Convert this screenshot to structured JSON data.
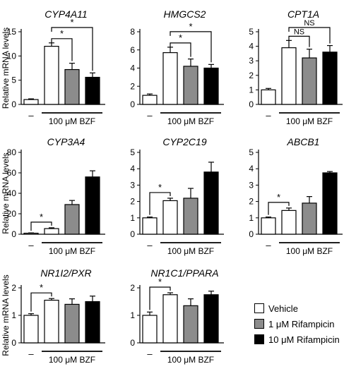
{
  "colors": {
    "vehicle": "#ffffff",
    "rif1": "#8c8c8c",
    "rif10": "#000000",
    "axis": "#000000"
  },
  "legend": [
    {
      "label": "Vehicle",
      "color": "#ffffff"
    },
    {
      "label": "1 μM Rifampicin",
      "color": "#8c8c8c"
    },
    {
      "label": "10 μM Rifampicin",
      "color": "#000000"
    }
  ],
  "chart_data": [
    {
      "type": "bar",
      "title": "CYP4A11",
      "ylabel": "Relative mRNA levels",
      "ylim": [
        0,
        15
      ],
      "yticks": [
        0,
        5,
        10,
        15
      ],
      "first_label": "–",
      "group_label": "100 μM BZF",
      "series": [
        {
          "name": "Vehicle"
        },
        {
          "name": "1 μM Rifampicin"
        },
        {
          "name": "10 μM Rifampicin"
        }
      ],
      "values": [
        1.0,
        12.0,
        7.2,
        5.6
      ],
      "errors": [
        0.15,
        0.7,
        1.3,
        0.9
      ],
      "annotations": [
        {
          "from": 1,
          "to": 2,
          "label": "*"
        },
        {
          "from": 1,
          "to": 3,
          "label": "*"
        }
      ]
    },
    {
      "type": "bar",
      "title": "HMGCS2",
      "ylabel": "",
      "ylim": [
        0,
        8
      ],
      "yticks": [
        0,
        2,
        4,
        6,
        8
      ],
      "first_label": "–",
      "group_label": "100 μM BZF",
      "values": [
        1.0,
        5.7,
        4.2,
        4.0
      ],
      "errors": [
        0.15,
        0.6,
        0.8,
        0.4
      ],
      "annotations": [
        {
          "from": 1,
          "to": 2,
          "label": "*"
        },
        {
          "from": 1,
          "to": 3,
          "label": "*"
        }
      ]
    },
    {
      "type": "bar",
      "title": "CPT1A",
      "ylabel": "",
      "ylim": [
        0,
        5
      ],
      "yticks": [
        0,
        1,
        2,
        3,
        4,
        5
      ],
      "first_label": "–",
      "group_label": "100 μM BZF",
      "values": [
        1.0,
        3.9,
        3.2,
        3.6
      ],
      "errors": [
        0.1,
        0.5,
        0.6,
        0.45
      ],
      "annotations": [
        {
          "from": 1,
          "to": 2,
          "label": "NS"
        },
        {
          "from": 1,
          "to": 3,
          "label": "NS"
        }
      ]
    },
    {
      "type": "bar",
      "title": "CYP3A4",
      "ylabel": "Relative mRNA levels",
      "ylim": [
        0,
        80
      ],
      "yticks": [
        0,
        20,
        40,
        60,
        80
      ],
      "first_label": "–",
      "group_label": "100 μM BZF",
      "values": [
        1.0,
        5.5,
        29,
        56
      ],
      "errors": [
        0.3,
        0.8,
        4,
        6
      ],
      "annotations": [
        {
          "from": 0,
          "to": 1,
          "label": "*"
        }
      ]
    },
    {
      "type": "bar",
      "title": "CYP2C19",
      "ylabel": "",
      "ylim": [
        0,
        5
      ],
      "yticks": [
        0,
        1,
        2,
        3,
        4,
        5
      ],
      "first_label": "–",
      "group_label": "100 μM BZF",
      "values": [
        1.0,
        2.05,
        2.2,
        3.8
      ],
      "errors": [
        0.05,
        0.15,
        0.6,
        0.6
      ],
      "annotations": [
        {
          "from": 0,
          "to": 1,
          "label": "*"
        }
      ]
    },
    {
      "type": "bar",
      "title": "ABCB1",
      "ylabel": "",
      "ylim": [
        0,
        5
      ],
      "yticks": [
        0,
        1,
        2,
        3,
        4,
        5
      ],
      "first_label": "–",
      "group_label": "100 μM BZF",
      "values": [
        1.0,
        1.45,
        1.9,
        3.75
      ],
      "errors": [
        0.05,
        0.15,
        0.4,
        0.08
      ],
      "annotations": [
        {
          "from": 0,
          "to": 1,
          "label": "*"
        }
      ]
    },
    {
      "type": "bar",
      "title": "NR1I2/PXR",
      "ylabel": "Relative mRNA levels",
      "ylim": [
        0,
        2
      ],
      "yticks": [
        0,
        1,
        2
      ],
      "first_label": "–",
      "group_label": "100 μM BZF",
      "values": [
        1.0,
        1.55,
        1.4,
        1.5
      ],
      "errors": [
        0.06,
        0.06,
        0.2,
        0.2
      ],
      "annotations": [
        {
          "from": 0,
          "to": 1,
          "label": "*"
        }
      ]
    },
    {
      "type": "bar",
      "title": "NR1C1/PPARA",
      "ylabel": "",
      "ylim": [
        0,
        2
      ],
      "yticks": [
        0,
        1,
        2
      ],
      "first_label": "–",
      "group_label": "100 μM BZF",
      "values": [
        1.0,
        1.75,
        1.35,
        1.75
      ],
      "errors": [
        0.12,
        0.07,
        0.25,
        0.13
      ],
      "annotations": [
        {
          "from": 0,
          "to": 1,
          "label": "*"
        }
      ]
    }
  ]
}
